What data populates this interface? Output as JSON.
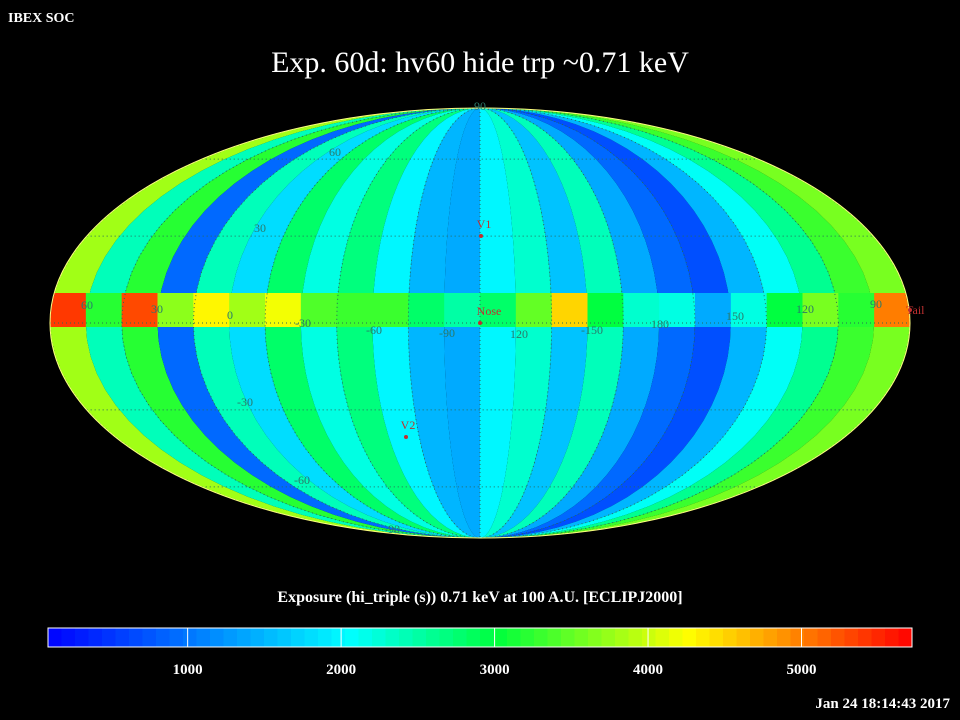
{
  "header": {
    "source": "IBEX SOC",
    "title": "Exp.   60d: hv60 hide trp ~0.71 keV",
    "timestamp": "Jan 24 18:14:43 2017"
  },
  "map": {
    "band_values": [
      3800,
      2400,
      3200,
      900,
      2400,
      1800,
      2800,
      2200,
      2700,
      2000,
      1500,
      1400,
      2000,
      2300,
      1600,
      2400,
      1400,
      900,
      700,
      1500,
      2100,
      2600,
      3300,
      3600
    ],
    "ecliptic_values": [
      5400,
      3200,
      5300,
      3700,
      4300,
      3800,
      4200,
      3400,
      3300,
      3300,
      2800,
      2500,
      2800,
      3500,
      4500,
      3000,
      2300,
      2200,
      1400,
      2200,
      3000,
      3600,
      3200,
      5000
    ],
    "lat_labels": [
      "90",
      "60",
      "30",
      "-30",
      "-60",
      "-90"
    ],
    "lon_labels": [
      "60",
      "30",
      "0",
      "-30",
      "-60",
      "-90",
      "120",
      "-150",
      "180",
      "150",
      "120",
      "90"
    ],
    "markers": [
      "V1",
      "Nose",
      "V2",
      "Tail"
    ]
  },
  "colorbar": {
    "title": "Exposure (hi_triple (s))  0.71 keV at 100 A.U. [ECLIPJ2000]",
    "range": [
      90,
      5720
    ],
    "ticks": [
      1000,
      2000,
      3000,
      4000,
      5000
    ]
  }
}
